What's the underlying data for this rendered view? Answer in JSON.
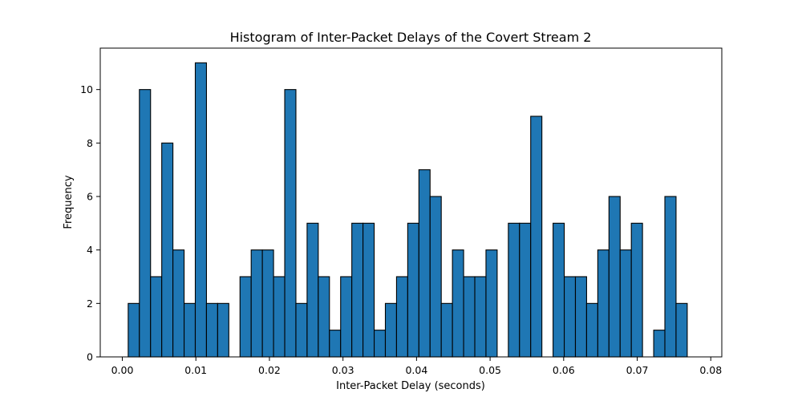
{
  "chart_data": {
    "type": "bar",
    "title": "Histogram of Inter-Packet Delays of the Covert Stream 2",
    "xlabel": "Inter-Packet Delay (seconds)",
    "ylabel": "Frequency",
    "xlim": [
      -0.003,
      0.0815
    ],
    "ylim": [
      0,
      11.55
    ],
    "bin_edges": [
      0.0008,
      0.00232,
      0.00384,
      0.00536,
      0.00688,
      0.0084,
      0.00992,
      0.01144,
      0.01296,
      0.01448,
      0.016,
      0.01752,
      0.01904,
      0.02056,
      0.02208,
      0.0236,
      0.02512,
      0.02664,
      0.02816,
      0.02968,
      0.0312,
      0.03272,
      0.03424,
      0.03576,
      0.03728,
      0.0388,
      0.04032,
      0.04184,
      0.04336,
      0.04488,
      0.0464,
      0.04792,
      0.04944,
      0.05096,
      0.05248,
      0.054,
      0.05552,
      0.05704,
      0.05856,
      0.06008,
      0.0616,
      0.06312,
      0.06464,
      0.06616,
      0.06768,
      0.0692,
      0.07072,
      0.07224,
      0.07376,
      0.07528,
      0.0768
    ],
    "values": [
      2,
      10,
      3,
      8,
      4,
      2,
      11,
      2,
      2,
      0,
      3,
      4,
      4,
      3,
      10,
      2,
      5,
      3,
      1,
      3,
      5,
      5,
      1,
      2,
      3,
      5,
      7,
      6,
      2,
      4,
      3,
      3,
      4,
      0,
      5,
      5,
      9,
      0,
      5,
      3,
      3,
      2,
      4,
      6,
      4,
      5,
      0,
      1,
      6,
      2
    ],
    "xticks": [
      0.0,
      0.01,
      0.02,
      0.03,
      0.04,
      0.05,
      0.06,
      0.07,
      0.08
    ],
    "xtick_labels": [
      "0.00",
      "0.01",
      "0.02",
      "0.03",
      "0.04",
      "0.05",
      "0.06",
      "0.07",
      "0.08"
    ],
    "yticks": [
      0,
      2,
      4,
      6,
      8,
      10
    ],
    "ytick_labels": [
      "0",
      "2",
      "4",
      "6",
      "8",
      "10"
    ],
    "bar_color": "#1f77b4",
    "edge_color": "#000000",
    "grid": false
  }
}
